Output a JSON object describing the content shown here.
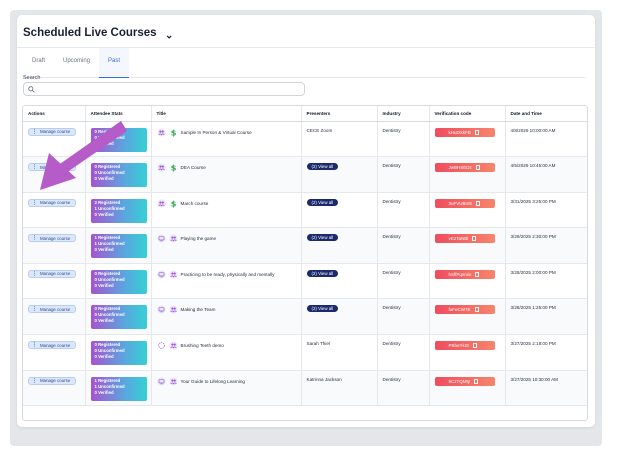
{
  "page": {
    "title": "Scheduled Live Courses",
    "tabs": [
      "Draft",
      "Upcoming",
      "Past"
    ],
    "active_tab": "Past",
    "search_label": "Search",
    "search_value": ""
  },
  "table": {
    "headers": [
      "Actions",
      "Attendee Stats",
      "Title",
      "Presenters",
      "Industry",
      "Verification code",
      "Date and Time"
    ],
    "manage_label": "Manage course",
    "view_all_label": "(2) View all",
    "rows": [
      {
        "stats": [
          "0 Registered",
          "0 Unconfirmed",
          "0 Verified"
        ],
        "title": "Sample In Person & Virtual Course",
        "presenter": "CECE Zoom",
        "industry": "Dentistry",
        "code": "kHuDXkFB",
        "date": "4/8/2025 10:00:00 AM"
      },
      {
        "stats": [
          "0 Registered",
          "0 Unconfirmed",
          "0 Verified"
        ],
        "title": "DEA Course",
        "presenter": "(2) View all",
        "industry": "Dentistry",
        "code": "JwBHSEDz",
        "date": "4/5/2025 10:45:00 AM"
      },
      {
        "stats": [
          "2 Registered",
          "1 Unconfirmed",
          "0 Verified"
        ],
        "title": "March course",
        "presenter": "(2) View all",
        "industry": "Dentistry",
        "code": "3uFVUBmE",
        "date": "3/31/2025 3:25:00 PM"
      },
      {
        "stats": [
          "1 Registered",
          "1 Unconfirmed",
          "0 Verified"
        ],
        "title": "Playing the game",
        "presenter": "(2) View all",
        "industry": "Dentistry",
        "code": "vE2TaNBl",
        "date": "3/29/2025 2:30:00 PM"
      },
      {
        "stats": [
          "0 Registered",
          "0 Unconfirmed",
          "0 Verified"
        ],
        "title": "Practicing to be ready, physically and mentally",
        "presenter": "(2) View all",
        "industry": "Dentistry",
        "code": "hSffPqeniin",
        "date": "3/28/2025 2:00:00 PM"
      },
      {
        "stats": [
          "0 Registered",
          "0 Unconfirmed",
          "0 Verified"
        ],
        "title": "Making the Team",
        "presenter": "(2) View all",
        "industry": "Dentistry",
        "code": "faFeCW7E",
        "date": "3/28/2025 1:25:00 PM"
      },
      {
        "stats": [
          "0 Registered",
          "0 Unconfirmed",
          "0 Verified"
        ],
        "title": "Brushing Teeth demo",
        "presenter": "Sarah Thiel",
        "industry": "Dentistry",
        "code": "PBbeYkrE",
        "date": "3/27/2025 2:18:00 PM"
      },
      {
        "stats": [
          "1 Registered",
          "1 Unconfirmed",
          "0 Verified"
        ],
        "title": "Your Guide to Lifelong Learning",
        "presenter": "Katrinna Jackson",
        "industry": "Dentistry",
        "code": "9CzTQMty",
        "date": "3/27/2025 10:30:00 AM"
      }
    ]
  },
  "colors": {
    "accent": "#3b6ed5",
    "arrow": "#b65cc9",
    "code_gradient_start": "#ef4c5e",
    "stats_gradient_start": "#a653cf"
  }
}
